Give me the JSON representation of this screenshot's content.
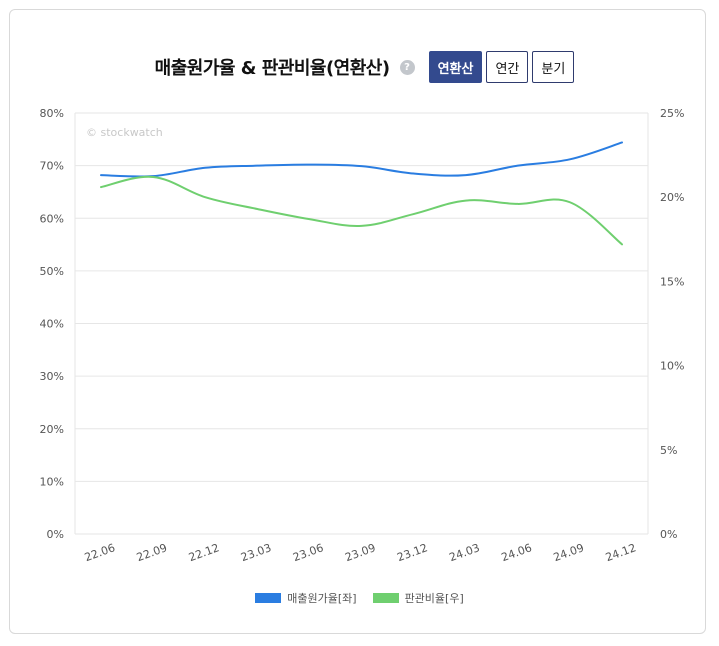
{
  "header": {
    "title": "매출원가율 & 판관비율(연환산)",
    "help_glyph": "?",
    "buttons": [
      "연환산",
      "연간",
      "분기"
    ],
    "active_button": "연환산"
  },
  "watermark": "© stockwatch",
  "colors": {
    "cost_ratio": "#2a7de1",
    "sga_ratio": "#6fcf6f",
    "active_button_bg": "#334a8e"
  },
  "chart_data": {
    "type": "line",
    "categories": [
      "22.06",
      "22.09",
      "22.12",
      "23.03",
      "23.06",
      "23.09",
      "23.12",
      "24.03",
      "24.06",
      "24.09",
      "24.12"
    ],
    "y_left": {
      "ticks": [
        "0%",
        "10%",
        "20%",
        "30%",
        "40%",
        "50%",
        "60%",
        "70%",
        "80%"
      ],
      "ylim": [
        0,
        80
      ]
    },
    "y_right": {
      "ticks": [
        "0%",
        "5%",
        "10%",
        "15%",
        "20%",
        "25%"
      ],
      "ylim": [
        0,
        25
      ]
    },
    "grid": true,
    "legend_position": "bottom",
    "series": [
      {
        "name": "매출원가율[좌]",
        "axis": "left",
        "values": [
          68.2,
          68.0,
          69.6,
          70.0,
          70.2,
          69.9,
          68.5,
          68.2,
          70.0,
          71.2,
          74.4
        ]
      },
      {
        "name": "판관비율[우]",
        "axis": "right",
        "values": [
          20.6,
          21.2,
          20.0,
          19.3,
          18.7,
          18.3,
          19.0,
          19.8,
          19.6,
          19.7,
          17.2
        ]
      }
    ]
  }
}
